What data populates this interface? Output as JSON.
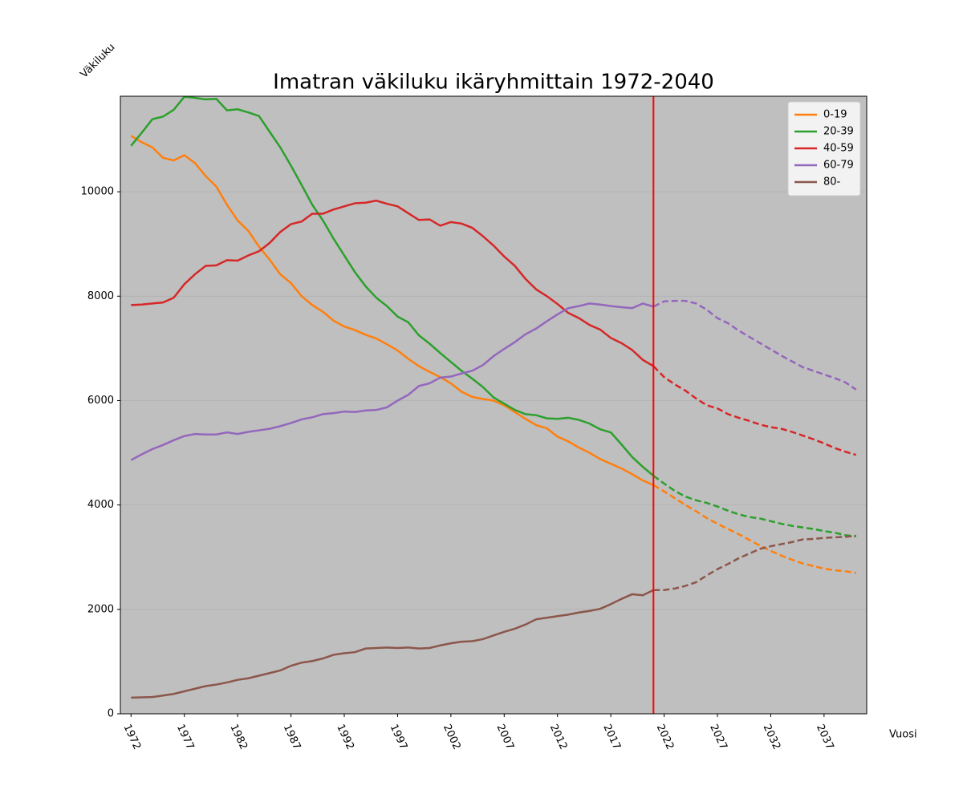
{
  "chart_data": {
    "type": "line",
    "title": "Imatran väkiluku ikäryhmittain 1972-2040",
    "ylabel": "Väkiluku",
    "xlabel": "Vuosi",
    "x": [
      1972,
      1973,
      1974,
      1975,
      1976,
      1977,
      1978,
      1979,
      1980,
      1981,
      1982,
      1983,
      1984,
      1985,
      1986,
      1987,
      1988,
      1989,
      1990,
      1991,
      1992,
      1993,
      1994,
      1995,
      1996,
      1997,
      1998,
      1999,
      2000,
      2001,
      2002,
      2003,
      2004,
      2005,
      2006,
      2007,
      2008,
      2009,
      2010,
      2011,
      2012,
      2013,
      2014,
      2015,
      2016,
      2017,
      2018,
      2019,
      2020,
      2021,
      2022,
      2023,
      2024,
      2025,
      2026,
      2027,
      2028,
      2029,
      2030,
      2031,
      2032,
      2033,
      2034,
      2035,
      2036,
      2037,
      2038,
      2039,
      2040
    ],
    "series": [
      {
        "name": "0-19",
        "color": "#ff7f0e",
        "values": [
          11070,
          10950,
          10850,
          10650,
          10600,
          10700,
          10550,
          10300,
          10100,
          9750,
          9450,
          9250,
          8950,
          8700,
          8420,
          8250,
          8000,
          7830,
          7700,
          7530,
          7420,
          7350,
          7260,
          7190,
          7080,
          6960,
          6800,
          6660,
          6550,
          6450,
          6330,
          6170,
          6070,
          6030,
          6000,
          5910,
          5780,
          5650,
          5530,
          5470,
          5310,
          5220,
          5100,
          5000,
          4880,
          4790,
          4700,
          4590,
          4470,
          4380,
          4260,
          4130,
          4000,
          3880,
          3750,
          3640,
          3540,
          3440,
          3330,
          3220,
          3120,
          3030,
          2950,
          2880,
          2830,
          2780,
          2750,
          2730,
          2700
        ]
      },
      {
        "name": "20-39",
        "color": "#2ca02c",
        "values": [
          10880,
          11130,
          11390,
          11440,
          11570,
          11820,
          11800,
          11770,
          11780,
          11560,
          11580,
          11520,
          11450,
          11150,
          10850,
          10500,
          10130,
          9750,
          9450,
          9100,
          8780,
          8460,
          8190,
          7970,
          7810,
          7610,
          7500,
          7250,
          7090,
          6910,
          6740,
          6570,
          6420,
          6260,
          6060,
          5940,
          5820,
          5740,
          5720,
          5660,
          5650,
          5670,
          5630,
          5560,
          5450,
          5390,
          5160,
          4920,
          4730,
          4560,
          4410,
          4270,
          4160,
          4090,
          4040,
          3970,
          3890,
          3820,
          3770,
          3740,
          3690,
          3640,
          3600,
          3570,
          3540,
          3500,
          3470,
          3420,
          3400
        ]
      },
      {
        "name": "40-59",
        "color": "#d62728",
        "values": [
          7830,
          7840,
          7860,
          7880,
          7970,
          8230,
          8420,
          8580,
          8590,
          8690,
          8680,
          8780,
          8860,
          9020,
          9230,
          9380,
          9430,
          9580,
          9580,
          9660,
          9720,
          9780,
          9790,
          9830,
          9770,
          9720,
          9590,
          9460,
          9470,
          9350,
          9420,
          9390,
          9310,
          9150,
          8970,
          8760,
          8580,
          8330,
          8130,
          8000,
          7850,
          7680,
          7580,
          7450,
          7360,
          7200,
          7100,
          6970,
          6780,
          6660,
          6450,
          6310,
          6190,
          6040,
          5910,
          5850,
          5740,
          5670,
          5610,
          5540,
          5490,
          5460,
          5400,
          5330,
          5260,
          5180,
          5090,
          5020,
          4960
        ]
      },
      {
        "name": "60-79",
        "color": "#9467bd",
        "values": [
          4860,
          4970,
          5070,
          5150,
          5240,
          5320,
          5360,
          5350,
          5350,
          5390,
          5360,
          5400,
          5430,
          5460,
          5510,
          5570,
          5640,
          5680,
          5740,
          5760,
          5790,
          5780,
          5810,
          5820,
          5870,
          6000,
          6110,
          6280,
          6330,
          6440,
          6460,
          6520,
          6570,
          6680,
          6850,
          6990,
          7120,
          7270,
          7380,
          7520,
          7650,
          7770,
          7810,
          7860,
          7840,
          7810,
          7790,
          7770,
          7860,
          7800,
          7900,
          7910,
          7910,
          7860,
          7740,
          7580,
          7480,
          7340,
          7220,
          7100,
          6980,
          6860,
          6750,
          6640,
          6570,
          6500,
          6430,
          6350,
          6210
        ]
      },
      {
        "name": "80-",
        "color": "#8c564b",
        "values": [
          310,
          315,
          320,
          350,
          380,
          430,
          480,
          530,
          560,
          600,
          650,
          680,
          730,
          780,
          830,
          920,
          980,
          1010,
          1060,
          1130,
          1160,
          1180,
          1250,
          1260,
          1270,
          1260,
          1270,
          1250,
          1260,
          1310,
          1350,
          1380,
          1390,
          1430,
          1500,
          1570,
          1630,
          1710,
          1810,
          1840,
          1870,
          1900,
          1940,
          1970,
          2010,
          2100,
          2200,
          2290,
          2270,
          2370,
          2370,
          2400,
          2450,
          2520,
          2650,
          2770,
          2870,
          2980,
          3070,
          3160,
          3210,
          3250,
          3290,
          3340,
          3350,
          3370,
          3380,
          3390,
          3410
        ]
      }
    ],
    "xlim": [
      1971,
      2041
    ],
    "xticks": [
      1972,
      1977,
      1982,
      1987,
      1992,
      1997,
      2002,
      2007,
      2012,
      2017,
      2022,
      2027,
      2032,
      2037
    ],
    "ylim": [
      0,
      11830
    ],
    "yticks": [
      0,
      2000,
      4000,
      6000,
      8000,
      10000
    ],
    "vline": {
      "x": 2021,
      "color": "#ff0000"
    },
    "grid": true,
    "legend": "upper right",
    "background": "#bfbfbf"
  }
}
